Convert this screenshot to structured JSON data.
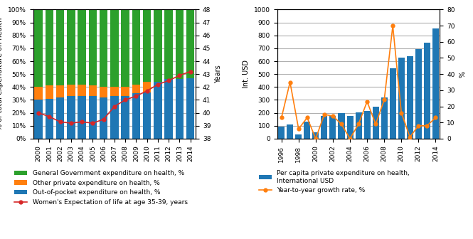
{
  "chart_data": [
    {
      "type": "bar",
      "stacked": true,
      "grid": true,
      "legend": "upper left",
      "ylabel": "% of total expenditure on health",
      "y2label": "Years",
      "categories": [
        "2000",
        "2001",
        "2002",
        "2003",
        "2004",
        "2005",
        "2006",
        "2007",
        "2008",
        "2009",
        "2010",
        "2011",
        "2012",
        "2013",
        "2014"
      ],
      "ylim": [
        0,
        100
      ],
      "yticks": [
        {
          "value": 0,
          "label": "0%"
        },
        {
          "value": 10,
          "label": "10%"
        },
        {
          "value": 20,
          "label": "20%"
        },
        {
          "value": 30,
          "label": "30%"
        },
        {
          "value": 40,
          "label": "40%"
        },
        {
          "value": 50,
          "label": "50%"
        },
        {
          "value": 60,
          "label": "60%"
        },
        {
          "value": 70,
          "label": "70%"
        },
        {
          "value": 80,
          "label": "80%"
        },
        {
          "value": 90,
          "label": "90%"
        },
        {
          "value": 100,
          "label": "100%"
        }
      ],
      "y2lim": [
        38,
        48
      ],
      "y2ticks": [
        38,
        39,
        40,
        41,
        42,
        43,
        44,
        45,
        46,
        47,
        48
      ],
      "series": [
        {
          "name": "Out-of-pocket expenditure on health, %",
          "type": "bar",
          "values": [
            30,
            31,
            32,
            33,
            33,
            33,
            32,
            33,
            33,
            35,
            36,
            44,
            46,
            46,
            47
          ]
        },
        {
          "name": "Other private expenditure on health, %",
          "type": "bar",
          "values": [
            10,
            10,
            9,
            9,
            9,
            8,
            8,
            7,
            7,
            7,
            8,
            0,
            0,
            0,
            0
          ]
        },
        {
          "name": "General Government expenditure on health, %",
          "type": "bar",
          "values": [
            60,
            59,
            59,
            58,
            58,
            59,
            60,
            60,
            60,
            58,
            56,
            56,
            54,
            54,
            53
          ]
        },
        {
          "name": "Women's Expectation of life at age 35-39, years",
          "type": "line",
          "axis": "y2",
          "marker": "o",
          "values": [
            40.0,
            39.7,
            39.3,
            39.2,
            39.3,
            39.2,
            39.5,
            40.5,
            41.0,
            41.3,
            41.7,
            42.2,
            42.5,
            42.9,
            43.2
          ]
        }
      ]
    },
    {
      "type": "bar",
      "grid": true,
      "legend": "upper left",
      "ylabel": "Int. USD",
      "y2label": "%",
      "categories": [
        "1996",
        null,
        "1998",
        null,
        "2000",
        null,
        "2002",
        null,
        "2004",
        null,
        "2006",
        null,
        "2008",
        null,
        "2010",
        null,
        "2012",
        null,
        "2014"
      ],
      "ylim": [
        0,
        1000
      ],
      "yticks": [
        0,
        100,
        200,
        300,
        400,
        500,
        600,
        700,
        800,
        900,
        1000
      ],
      "y2lim": [
        0,
        80
      ],
      "y2ticks": [
        0,
        10,
        20,
        30,
        40,
        50,
        60,
        70,
        80
      ],
      "series": [
        {
          "name": "Per capita private expenditure on health,\nInternational USD",
          "type": "bar",
          "values": [
            95,
            110,
            30,
            130,
            50,
            175,
            175,
            195,
            175,
            205,
            215,
            250,
            320,
            545,
            630,
            640,
            695,
            745,
            855
          ]
        },
        {
          "name": "Year-to-year growth rate, %",
          "type": "line",
          "axis": "y2",
          "marker": "o",
          "values": [
            13,
            35,
            6,
            13,
            0,
            15,
            14,
            9,
            0,
            9,
            23,
            9,
            24,
            70,
            16,
            1,
            8,
            8,
            13
          ]
        }
      ]
    }
  ]
}
